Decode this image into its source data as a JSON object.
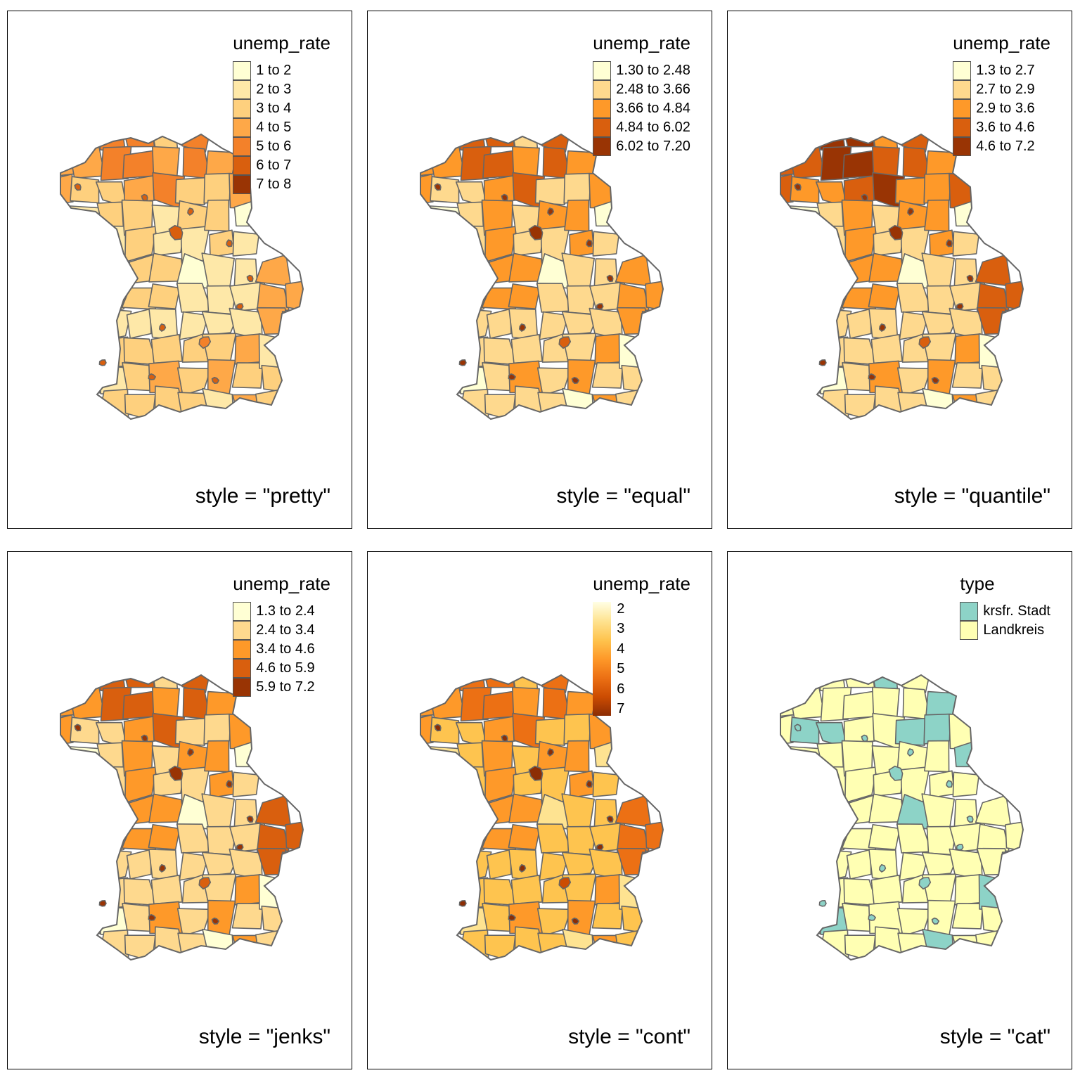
{
  "panels": [
    {
      "caption": "style = \"pretty\"",
      "legend": {
        "title": "unemp_rate",
        "kind": "classes",
        "items": [
          {
            "label": "1 to 2",
            "color": "#ffffd4"
          },
          {
            "label": "2 to 3",
            "color": "#fee8a8"
          },
          {
            "label": "3 to 4",
            "color": "#fed07e"
          },
          {
            "label": "4 to 5",
            "color": "#fea848"
          },
          {
            "label": "5 to 6",
            "color": "#f3812a"
          },
          {
            "label": "6 to 7",
            "color": "#d95f0e"
          },
          {
            "label": "7 to 8",
            "color": "#993404"
          }
        ]
      },
      "classes": {
        "base": 1,
        "city": 5,
        "hot": 3,
        "south": 2,
        "north": 3,
        "ne": 4,
        "west": 1,
        "midcity": 2
      }
    },
    {
      "caption": "style = \"equal\"",
      "legend": {
        "title": "unemp_rate",
        "kind": "classes",
        "items": [
          {
            "label": "1.30 to 2.48",
            "color": "#ffffd4"
          },
          {
            "label": "2.48 to 3.66",
            "color": "#fed98e"
          },
          {
            "label": "3.66 to 4.84",
            "color": "#fe9929"
          },
          {
            "label": "4.84 to 6.02",
            "color": "#d95f0e"
          },
          {
            "label": "6.02 to 7.20",
            "color": "#993404"
          }
        ]
      },
      "classes": {
        "base": 1,
        "city": 4,
        "hot": 2,
        "south": 1,
        "north": 2,
        "ne": 3,
        "west": 0,
        "midcity": 1
      }
    },
    {
      "caption": "style = \"quantile\"",
      "legend": {
        "title": "unemp_rate",
        "kind": "classes",
        "items": [
          {
            "label": "1.3 to 2.7",
            "color": "#ffffd4"
          },
          {
            "label": "2.7 to 2.9",
            "color": "#fed98e"
          },
          {
            "label": "2.9 to 3.6",
            "color": "#fe9929"
          },
          {
            "label": "3.6 to 4.6",
            "color": "#d95f0e"
          },
          {
            "label": "4.6 to 7.2",
            "color": "#993404"
          }
        ]
      },
      "classes": {
        "base": 1,
        "city": 4,
        "hot": 3,
        "south": 1,
        "north": 3,
        "ne": 3,
        "west": 0,
        "midcity": 2
      }
    },
    {
      "caption": "style = \"jenks\"",
      "legend": {
        "title": "unemp_rate",
        "kind": "classes",
        "items": [
          {
            "label": "1.3 to 2.4",
            "color": "#ffffd4"
          },
          {
            "label": "2.4 to 3.4",
            "color": "#fed98e"
          },
          {
            "label": "3.4 to 4.6",
            "color": "#fe9929"
          },
          {
            "label": "4.6 to 5.9",
            "color": "#d95f0e"
          },
          {
            "label": "5.9 to 7.2",
            "color": "#993404"
          }
        ]
      },
      "classes": {
        "base": 1,
        "city": 4,
        "hot": 3,
        "south": 1,
        "north": 2,
        "ne": 3,
        "west": 0,
        "midcity": 1
      }
    },
    {
      "caption": "style = \"cont\"",
      "legend": {
        "title": "unemp_rate",
        "kind": "continuous",
        "ticks": [
          "2",
          "3",
          "4",
          "5",
          "6",
          "7"
        ],
        "colors": [
          "#ffffe5",
          "#fee391",
          "#fec44f",
          "#fe9929",
          "#ec7014",
          "#cc4c02",
          "#8c2d04"
        ]
      },
      "classes": {
        "base": 2,
        "city": 6,
        "hot": 4,
        "south": 2,
        "north": 3,
        "ne": 4,
        "west": 1,
        "midcity": 2
      }
    },
    {
      "caption": "style = \"cat\"",
      "legend": {
        "title": "type",
        "kind": "classes",
        "items": [
          {
            "label": "krsfr. Stadt",
            "color": "#8dd3c7"
          },
          {
            "label": "Landkreis",
            "color": "#ffffb3"
          }
        ]
      },
      "classes": {
        "base": 1,
        "city": 0,
        "hot": 1,
        "south": 1,
        "north": 1,
        "ne": 1,
        "west": 1,
        "midcity": 1
      }
    }
  ]
}
